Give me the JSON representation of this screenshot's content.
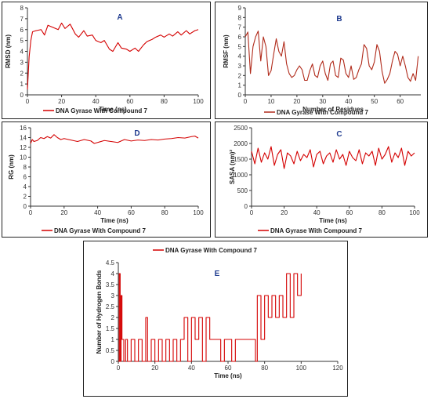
{
  "colors": {
    "series": "#d40000",
    "series_dark": "#b02a1a",
    "letter": "#1f3b8f",
    "axis": "#333333"
  },
  "chart_data": [
    {
      "id": "A",
      "type": "line",
      "letter": "A",
      "ylabel": "RMSD (nm)",
      "xlabel": "Time (ns)",
      "xlim": [
        0,
        100
      ],
      "ylim": [
        0,
        8
      ],
      "xticks": [
        0,
        20,
        40,
        60,
        80,
        100
      ],
      "yticks": [
        0,
        1,
        2,
        3,
        4,
        5,
        6,
        7,
        8
      ],
      "grid": false,
      "legend_position": "bottom",
      "series": [
        {
          "name": "DNA Gyrase With Compound 7",
          "x": [
            0,
            1,
            2,
            3,
            5,
            8,
            10,
            12,
            15,
            18,
            20,
            22,
            25,
            28,
            30,
            33,
            35,
            38,
            40,
            43,
            45,
            48,
            50,
            53,
            55,
            58,
            60,
            63,
            65,
            68,
            70,
            73,
            75,
            78,
            80,
            83,
            85,
            88,
            90,
            93,
            95,
            98,
            100
          ],
          "y": [
            0.5,
            3.5,
            5.0,
            5.8,
            5.9,
            6.0,
            5.5,
            6.4,
            6.2,
            6.0,
            6.6,
            6.1,
            6.5,
            5.6,
            5.3,
            5.9,
            5.4,
            5.5,
            5.0,
            4.8,
            5.0,
            4.2,
            4.0,
            4.8,
            4.3,
            4.2,
            4.0,
            4.3,
            4.0,
            4.6,
            4.9,
            5.1,
            5.3,
            5.5,
            5.3,
            5.6,
            5.4,
            5.8,
            5.5,
            5.9,
            5.6,
            5.9,
            6.0
          ]
        }
      ]
    },
    {
      "id": "B",
      "type": "line",
      "letter": "B",
      "ylabel": "RMSF (nm)",
      "xlabel": "Number of Residues",
      "xlim": [
        0,
        68
      ],
      "ylim": [
        0,
        9
      ],
      "xticks": [
        0,
        10,
        20,
        30,
        40,
        50,
        60
      ],
      "yticks": [
        0,
        1,
        2,
        3,
        4,
        5,
        6,
        7,
        8,
        9
      ],
      "grid": false,
      "legend_position": "bottom",
      "series": [
        {
          "name": "DNA Gyrase With Compound 7",
          "x": [
            0,
            1,
            2,
            3,
            4,
            5,
            6,
            7,
            8,
            9,
            10,
            11,
            12,
            13,
            14,
            15,
            16,
            17,
            18,
            19,
            20,
            21,
            22,
            23,
            24,
            25,
            26,
            27,
            28,
            29,
            30,
            31,
            32,
            33,
            34,
            35,
            36,
            37,
            38,
            39,
            40,
            41,
            42,
            43,
            44,
            45,
            46,
            47,
            48,
            49,
            50,
            51,
            52,
            53,
            54,
            55,
            56,
            57,
            58,
            59,
            60,
            61,
            62,
            63,
            64,
            65,
            66,
            67
          ],
          "y": [
            6.0,
            6.5,
            2.2,
            5.0,
            6.0,
            6.6,
            3.5,
            6.0,
            5.0,
            2.0,
            2.5,
            4.2,
            5.8,
            4.5,
            4.0,
            5.5,
            3.2,
            2.2,
            1.8,
            2.0,
            2.6,
            3.0,
            2.6,
            1.5,
            1.5,
            2.5,
            3.2,
            2.0,
            1.8,
            3.0,
            3.5,
            2.2,
            1.5,
            3.2,
            3.5,
            2.0,
            1.8,
            3.8,
            3.6,
            2.2,
            1.8,
            3.0,
            1.6,
            1.8,
            2.6,
            3.2,
            5.2,
            4.8,
            3.0,
            2.6,
            3.4,
            5.2,
            4.5,
            2.4,
            1.2,
            1.6,
            2.2,
            3.5,
            4.5,
            4.2,
            3.0,
            4.0,
            3.0,
            1.8,
            1.4,
            2.2,
            1.5,
            4.0
          ]
        }
      ]
    },
    {
      "id": "D",
      "type": "line",
      "letter": "D",
      "ylabel": "RG (nm)",
      "xlabel": "Time (ns)",
      "xlim": [
        0,
        100
      ],
      "ylim": [
        0,
        16
      ],
      "xticks": [
        0,
        20,
        40,
        60,
        80,
        100
      ],
      "yticks": [
        0,
        2,
        4,
        6,
        8,
        10,
        12,
        14,
        16
      ],
      "grid": false,
      "legend_position": "bottom",
      "series": [
        {
          "name": "DNA Gyrase With Compound 7",
          "x": [
            0,
            1,
            2,
            4,
            6,
            8,
            10,
            12,
            14,
            16,
            18,
            20,
            24,
            28,
            32,
            36,
            38,
            40,
            44,
            48,
            52,
            56,
            60,
            64,
            68,
            72,
            76,
            80,
            84,
            88,
            92,
            96,
            98,
            100
          ],
          "y": [
            12.8,
            13.6,
            13.2,
            13.4,
            14.0,
            13.8,
            14.2,
            13.9,
            14.6,
            14.0,
            13.6,
            13.8,
            13.5,
            13.2,
            13.6,
            13.3,
            12.8,
            13.0,
            13.4,
            13.2,
            13.0,
            13.6,
            13.3,
            13.5,
            13.4,
            13.6,
            13.5,
            13.7,
            13.8,
            14.0,
            13.9,
            14.2,
            14.3,
            13.9
          ]
        }
      ]
    },
    {
      "id": "C",
      "type": "line",
      "letter": "C",
      "ylabel": "SASA (nm)²",
      "xlabel": "Time (ns)",
      "xlim": [
        0,
        100
      ],
      "ylim": [
        0,
        2500
      ],
      "xticks": [
        0,
        20,
        40,
        60,
        80,
        100
      ],
      "yticks": [
        0,
        500,
        1000,
        1500,
        2000,
        2500
      ],
      "grid": false,
      "legend_position": "bottom",
      "series": [
        {
          "name": "DNA Gyrase With Compound 7",
          "x": [
            0,
            2,
            4,
            6,
            8,
            10,
            12,
            14,
            16,
            18,
            20,
            22,
            24,
            26,
            28,
            30,
            32,
            34,
            36,
            38,
            40,
            42,
            44,
            46,
            48,
            50,
            52,
            54,
            56,
            58,
            60,
            62,
            64,
            66,
            68,
            70,
            72,
            74,
            76,
            78,
            80,
            82,
            84,
            86,
            88,
            90,
            92,
            94,
            96,
            98,
            100
          ],
          "y": [
            1750,
            1350,
            1850,
            1400,
            1700,
            1500,
            1900,
            1300,
            1650,
            1800,
            1200,
            1700,
            1600,
            1350,
            1750,
            1450,
            1650,
            1550,
            1800,
            1250,
            1650,
            1750,
            1350,
            1600,
            1700,
            1400,
            1800,
            1500,
            1650,
            1300,
            1750,
            1550,
            1450,
            1800,
            1350,
            1700,
            1600,
            1750,
            1300,
            1850,
            1500,
            1650,
            1900,
            1400,
            1700,
            1550,
            1850,
            1300,
            1750,
            1600,
            1700
          ]
        }
      ]
    },
    {
      "id": "E",
      "type": "line",
      "letter": "E",
      "ylabel": "Number of Hydrogen Bonds",
      "xlabel": "Time (ns)",
      "xlim": [
        0,
        120
      ],
      "ylim": [
        0,
        4.5
      ],
      "xticks": [
        0,
        20,
        40,
        60,
        80,
        100,
        120
      ],
      "yticks": [
        0,
        0.5,
        1,
        1.5,
        2,
        2.5,
        3,
        3.5,
        4,
        4.5
      ],
      "grid": false,
      "legend_position": "top",
      "series": [
        {
          "name": "DNA Gyrase With Compound 7",
          "x": [
            0,
            0.5,
            1,
            1.5,
            2,
            3,
            4,
            5,
            7,
            9,
            11,
            13,
            15,
            16,
            18,
            20,
            22,
            24,
            26,
            28,
            30,
            32,
            34,
            36,
            38,
            40,
            42,
            44,
            46,
            48,
            50,
            52,
            54,
            56,
            58,
            60,
            62,
            64,
            66,
            68,
            70,
            72,
            74,
            75,
            76,
            78,
            80,
            82,
            84,
            86,
            88,
            90,
            92,
            94,
            96,
            98,
            100
          ],
          "y": [
            0,
            4,
            0,
            3,
            1,
            0,
            1,
            0,
            1,
            0,
            1,
            0,
            2,
            0,
            1,
            0,
            1,
            0,
            1,
            0,
            1,
            0,
            1,
            2,
            0,
            2,
            1,
            2,
            0,
            2,
            1,
            1,
            1,
            0,
            1,
            1,
            0,
            1,
            1,
            1,
            1,
            1,
            1,
            0,
            3,
            1,
            3,
            2,
            3,
            2,
            3,
            2,
            4,
            2,
            4,
            3,
            4
          ]
        }
      ]
    }
  ],
  "legend": {
    "label": "DNA Gyrase With Compound 7"
  }
}
